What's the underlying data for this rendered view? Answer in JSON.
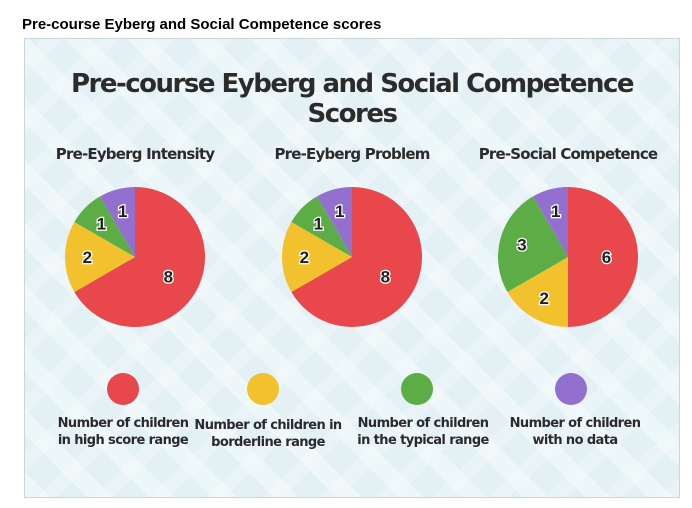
{
  "caption": "Pre-course Eyberg and Social Competence scores",
  "main_title": "Pre-course Eyberg and Social Competence Scores",
  "colors": {
    "high": "#e8474b",
    "borderline": "#f2c12e",
    "typical": "#5cad45",
    "nodata": "#9370cf"
  },
  "chart_data": [
    {
      "type": "pie",
      "title": "Pre-Eyberg Intensity",
      "labels": [
        "Number of children in high score range",
        "Number of children in borderline range",
        "Number of children in the typical range",
        "Number of children with no data"
      ],
      "values": [
        8,
        2,
        1,
        1
      ]
    },
    {
      "type": "pie",
      "title": "Pre-Eyberg Problem",
      "labels": [
        "Number of children in high score range",
        "Number of children in borderline range",
        "Number of children in the typical range",
        "Number of children with no data"
      ],
      "values": [
        8,
        2,
        1,
        1
      ]
    },
    {
      "type": "pie",
      "title": "Pre-Social Competence",
      "labels": [
        "Number of children in high score range",
        "Number of children in borderline range",
        "Number of children in the typical range",
        "Number of children with no data"
      ],
      "values": [
        6,
        2,
        3,
        1
      ]
    }
  ],
  "legend": [
    {
      "key": "high",
      "label": "Number of children\nin high score range"
    },
    {
      "key": "borderline",
      "label": "Number of children in\nborderline range"
    },
    {
      "key": "typical",
      "label": "Number of children\nin the typical range"
    },
    {
      "key": "nodata",
      "label": "Number of children\nwith no data"
    }
  ]
}
